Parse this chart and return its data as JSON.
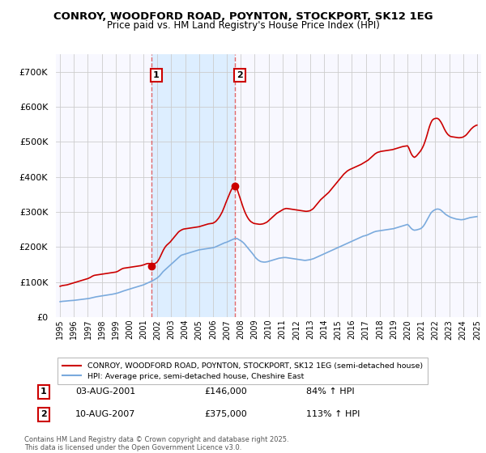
{
  "title": "CONROY, WOODFORD ROAD, POYNTON, STOCKPORT, SK12 1EG",
  "subtitle": "Price paid vs. HM Land Registry's House Price Index (HPI)",
  "legend_line1": "CONROY, WOODFORD ROAD, POYNTON, STOCKPORT, SK12 1EG (semi-detached house)",
  "legend_line2": "HPI: Average price, semi-detached house, Cheshire East",
  "footer": "Contains HM Land Registry data © Crown copyright and database right 2025.\nThis data is licensed under the Open Government Licence v3.0.",
  "sale1_label": "1",
  "sale1_date": "03-AUG-2001",
  "sale1_price": "£146,000",
  "sale1_hpi": "84% ↑ HPI",
  "sale2_label": "2",
  "sale2_date": "10-AUG-2007",
  "sale2_price": "£375,000",
  "sale2_hpi": "113% ↑ HPI",
  "red_color": "#cc0000",
  "blue_color": "#7aaadd",
  "vline_color": "#dd4444",
  "shade_color": "#ddeeff",
  "grid_color": "#cccccc",
  "background_color": "#ffffff",
  "plot_bg_color": "#f8f8ff",
  "ylim": [
    0,
    750000
  ],
  "xlim_start": 1994.7,
  "xlim_end": 2025.3,
  "sale1_x": 2001.58,
  "sale1_y": 146000,
  "sale2_x": 2007.58,
  "sale2_y": 375000,
  "hpi_data_x": [
    1995.0,
    1995.083,
    1995.167,
    1995.25,
    1995.333,
    1995.417,
    1995.5,
    1995.583,
    1995.667,
    1995.75,
    1995.833,
    1995.917,
    1996.0,
    1996.083,
    1996.167,
    1996.25,
    1996.333,
    1996.417,
    1996.5,
    1996.583,
    1996.667,
    1996.75,
    1996.833,
    1996.917,
    1997.0,
    1997.083,
    1997.167,
    1997.25,
    1997.333,
    1997.417,
    1997.5,
    1997.583,
    1997.667,
    1997.75,
    1997.833,
    1997.917,
    1998.0,
    1998.083,
    1998.167,
    1998.25,
    1998.333,
    1998.417,
    1998.5,
    1998.583,
    1998.667,
    1998.75,
    1998.833,
    1998.917,
    1999.0,
    1999.083,
    1999.167,
    1999.25,
    1999.333,
    1999.417,
    1999.5,
    1999.583,
    1999.667,
    1999.75,
    1999.833,
    1999.917,
    2000.0,
    2000.083,
    2000.167,
    2000.25,
    2000.333,
    2000.417,
    2000.5,
    2000.583,
    2000.667,
    2000.75,
    2000.833,
    2000.917,
    2001.0,
    2001.083,
    2001.167,
    2001.25,
    2001.333,
    2001.417,
    2001.5,
    2001.583,
    2001.667,
    2001.75,
    2001.833,
    2001.917,
    2002.0,
    2002.083,
    2002.167,
    2002.25,
    2002.333,
    2002.417,
    2002.5,
    2002.583,
    2002.667,
    2002.75,
    2002.833,
    2002.917,
    2003.0,
    2003.083,
    2003.167,
    2003.25,
    2003.333,
    2003.417,
    2003.5,
    2003.583,
    2003.667,
    2003.75,
    2003.833,
    2003.917,
    2004.0,
    2004.083,
    2004.167,
    2004.25,
    2004.333,
    2004.417,
    2004.5,
    2004.583,
    2004.667,
    2004.75,
    2004.833,
    2004.917,
    2005.0,
    2005.083,
    2005.167,
    2005.25,
    2005.333,
    2005.417,
    2005.5,
    2005.583,
    2005.667,
    2005.75,
    2005.833,
    2005.917,
    2006.0,
    2006.083,
    2006.167,
    2006.25,
    2006.333,
    2006.417,
    2006.5,
    2006.583,
    2006.667,
    2006.75,
    2006.833,
    2006.917,
    2007.0,
    2007.083,
    2007.167,
    2007.25,
    2007.333,
    2007.417,
    2007.5,
    2007.583,
    2007.667,
    2007.75,
    2007.833,
    2007.917,
    2008.0,
    2008.083,
    2008.167,
    2008.25,
    2008.333,
    2008.417,
    2008.5,
    2008.583,
    2008.667,
    2008.75,
    2008.833,
    2008.917,
    2009.0,
    2009.083,
    2009.167,
    2009.25,
    2009.333,
    2009.417,
    2009.5,
    2009.583,
    2009.667,
    2009.75,
    2009.833,
    2009.917,
    2010.0,
    2010.083,
    2010.167,
    2010.25,
    2010.333,
    2010.417,
    2010.5,
    2010.583,
    2010.667,
    2010.75,
    2010.833,
    2010.917,
    2011.0,
    2011.083,
    2011.167,
    2011.25,
    2011.333,
    2011.417,
    2011.5,
    2011.583,
    2011.667,
    2011.75,
    2011.833,
    2011.917,
    2012.0,
    2012.083,
    2012.167,
    2012.25,
    2012.333,
    2012.417,
    2012.5,
    2012.583,
    2012.667,
    2012.75,
    2012.833,
    2012.917,
    2013.0,
    2013.083,
    2013.167,
    2013.25,
    2013.333,
    2013.417,
    2013.5,
    2013.583,
    2013.667,
    2013.75,
    2013.833,
    2013.917,
    2014.0,
    2014.083,
    2014.167,
    2014.25,
    2014.333,
    2014.417,
    2014.5,
    2014.583,
    2014.667,
    2014.75,
    2014.833,
    2014.917,
    2015.0,
    2015.083,
    2015.167,
    2015.25,
    2015.333,
    2015.417,
    2015.5,
    2015.583,
    2015.667,
    2015.75,
    2015.833,
    2015.917,
    2016.0,
    2016.083,
    2016.167,
    2016.25,
    2016.333,
    2016.417,
    2016.5,
    2016.583,
    2016.667,
    2016.75,
    2016.833,
    2016.917,
    2017.0,
    2017.083,
    2017.167,
    2017.25,
    2017.333,
    2017.417,
    2017.5,
    2017.583,
    2017.667,
    2017.75,
    2017.833,
    2017.917,
    2018.0,
    2018.083,
    2018.167,
    2018.25,
    2018.333,
    2018.417,
    2018.5,
    2018.583,
    2018.667,
    2018.75,
    2018.833,
    2018.917,
    2019.0,
    2019.083,
    2019.167,
    2019.25,
    2019.333,
    2019.417,
    2019.5,
    2019.583,
    2019.667,
    2019.75,
    2019.833,
    2019.917,
    2020.0,
    2020.083,
    2020.167,
    2020.25,
    2020.333,
    2020.417,
    2020.5,
    2020.583,
    2020.667,
    2020.75,
    2020.833,
    2020.917,
    2021.0,
    2021.083,
    2021.167,
    2021.25,
    2021.333,
    2021.417,
    2021.5,
    2021.583,
    2021.667,
    2021.75,
    2021.833,
    2021.917,
    2022.0,
    2022.083,
    2022.167,
    2022.25,
    2022.333,
    2022.417,
    2022.5,
    2022.583,
    2022.667,
    2022.75,
    2022.833,
    2022.917,
    2023.0,
    2023.083,
    2023.167,
    2023.25,
    2023.333,
    2023.417,
    2023.5,
    2023.583,
    2023.667,
    2023.75,
    2023.833,
    2023.917,
    2024.0,
    2024.083,
    2024.167,
    2024.25,
    2024.333,
    2024.417,
    2024.5,
    2024.583,
    2024.667,
    2024.75,
    2024.833,
    2024.917,
    2025.0
  ],
  "hpi_data_y": [
    44000,
    44500,
    45000,
    45200,
    45500,
    45800,
    46200,
    46500,
    46800,
    47000,
    47200,
    47500,
    47800,
    48200,
    48600,
    49000,
    49400,
    49800,
    50200,
    50600,
    51000,
    51400,
    51800,
    52200,
    52600,
    53200,
    54000,
    54800,
    55600,
    56400,
    57200,
    57800,
    58400,
    59000,
    59500,
    60000,
    60500,
    61000,
    61500,
    62000,
    62500,
    63000,
    63500,
    64000,
    64600,
    65200,
    65800,
    66500,
    67200,
    68000,
    69000,
    70000,
    71200,
    72500,
    73800,
    74800,
    75800,
    76800,
    77800,
    78800,
    79800,
    81000,
    82000,
    83000,
    84000,
    85000,
    86000,
    87000,
    88000,
    89000,
    90000,
    91000,
    92000,
    93500,
    95000,
    96500,
    98000,
    99500,
    101000,
    102500,
    104000,
    106000,
    108000,
    110000,
    112000,
    115000,
    118000,
    122000,
    126000,
    130000,
    133000,
    136000,
    139000,
    142000,
    145000,
    148000,
    151000,
    154000,
    157000,
    160000,
    163000,
    166000,
    169000,
    172000,
    175000,
    177000,
    178000,
    179000,
    180000,
    181000,
    182000,
    183000,
    184000,
    185000,
    186000,
    187000,
    188000,
    189000,
    190000,
    191000,
    192000,
    192500,
    193000,
    193500,
    194000,
    194500,
    195000,
    195500,
    196000,
    196500,
    197000,
    197500,
    198000,
    199000,
    200000,
    201500,
    203000,
    204500,
    206000,
    207500,
    209000,
    210500,
    212000,
    213000,
    214000,
    215500,
    217000,
    218500,
    220000,
    221500,
    223000,
    224000,
    224500,
    224000,
    222000,
    220000,
    218000,
    216000,
    213000,
    210000,
    206000,
    202000,
    198000,
    194000,
    190000,
    186000,
    182000,
    178000,
    173000,
    169000,
    166000,
    163000,
    161000,
    159000,
    158000,
    157500,
    157000,
    157000,
    157500,
    158000,
    159000,
    160000,
    161000,
    162000,
    163000,
    164000,
    165000,
    166000,
    167000,
    168000,
    168500,
    169000,
    169500,
    170000,
    170000,
    170000,
    169500,
    169000,
    168500,
    168000,
    167500,
    167000,
    166500,
    166000,
    165500,
    165000,
    164500,
    164000,
    163500,
    163000,
    162500,
    162000,
    162000,
    162500,
    163000,
    163500,
    164000,
    165000,
    166000,
    167000,
    168500,
    170000,
    171500,
    173000,
    174500,
    176000,
    177500,
    179000,
    180500,
    182000,
    183500,
    185000,
    186500,
    188000,
    189500,
    191000,
    192500,
    194000,
    195500,
    197000,
    198500,
    200000,
    201500,
    203000,
    204500,
    206000,
    207500,
    209000,
    210500,
    212000,
    213500,
    215000,
    216500,
    218000,
    219500,
    221000,
    222500,
    224000,
    225500,
    227000,
    228500,
    230000,
    231500,
    232000,
    233000,
    234000,
    235500,
    237000,
    238500,
    240000,
    241500,
    243000,
    244000,
    245000,
    245500,
    246000,
    246500,
    247000,
    247500,
    248000,
    248500,
    249000,
    249500,
    250000,
    250500,
    251000,
    251500,
    252000,
    252500,
    253500,
    254500,
    255500,
    256500,
    257500,
    258500,
    259500,
    260500,
    261500,
    262500,
    263500,
    264500,
    262000,
    258000,
    254000,
    251000,
    249000,
    248000,
    248500,
    249000,
    250000,
    251000,
    252000,
    254000,
    257000,
    261000,
    266000,
    272000,
    278000,
    284000,
    290000,
    296000,
    300000,
    303000,
    305000,
    307000,
    308000,
    308500,
    308000,
    307000,
    305000,
    302000,
    299000,
    296000,
    293000,
    291000,
    289000,
    287000,
    285500,
    284000,
    283000,
    282000,
    281000,
    280000,
    279500,
    279000,
    278500,
    278000,
    278000,
    278500,
    279000,
    280000,
    281000,
    282000,
    283000,
    284000,
    284500,
    285000,
    285500,
    286000,
    286500,
    287000
  ],
  "red_data_x": [
    1995.0,
    1995.083,
    1995.167,
    1995.25,
    1995.333,
    1995.417,
    1995.5,
    1995.583,
    1995.667,
    1995.75,
    1995.833,
    1995.917,
    1996.0,
    1996.083,
    1996.167,
    1996.25,
    1996.333,
    1996.417,
    1996.5,
    1996.583,
    1996.667,
    1996.75,
    1996.833,
    1996.917,
    1997.0,
    1997.083,
    1997.167,
    1997.25,
    1997.333,
    1997.417,
    1997.5,
    1997.583,
    1997.667,
    1997.75,
    1997.833,
    1997.917,
    1998.0,
    1998.083,
    1998.167,
    1998.25,
    1998.333,
    1998.417,
    1998.5,
    1998.583,
    1998.667,
    1998.75,
    1998.833,
    1998.917,
    1999.0,
    1999.083,
    1999.167,
    1999.25,
    1999.333,
    1999.417,
    1999.5,
    1999.583,
    1999.667,
    1999.75,
    1999.833,
    1999.917,
    2000.0,
    2000.083,
    2000.167,
    2000.25,
    2000.333,
    2000.417,
    2000.5,
    2000.583,
    2000.667,
    2000.75,
    2000.833,
    2000.917,
    2001.0,
    2001.083,
    2001.167,
    2001.25,
    2001.333,
    2001.417,
    2001.5,
    2001.583,
    2001.667,
    2001.75,
    2001.833,
    2001.917,
    2002.0,
    2002.083,
    2002.167,
    2002.25,
    2002.333,
    2002.417,
    2002.5,
    2002.583,
    2002.667,
    2002.75,
    2002.833,
    2002.917,
    2003.0,
    2003.083,
    2003.167,
    2003.25,
    2003.333,
    2003.417,
    2003.5,
    2003.583,
    2003.667,
    2003.75,
    2003.833,
    2003.917,
    2004.0,
    2004.083,
    2004.167,
    2004.25,
    2004.333,
    2004.417,
    2004.5,
    2004.583,
    2004.667,
    2004.75,
    2004.833,
    2004.917,
    2005.0,
    2005.083,
    2005.167,
    2005.25,
    2005.333,
    2005.417,
    2005.5,
    2005.583,
    2005.667,
    2005.75,
    2005.833,
    2005.917,
    2006.0,
    2006.083,
    2006.167,
    2006.25,
    2006.333,
    2006.417,
    2006.5,
    2006.583,
    2006.667,
    2006.75,
    2006.833,
    2006.917,
    2007.0,
    2007.083,
    2007.167,
    2007.25,
    2007.333,
    2007.417,
    2007.5,
    2007.583,
    2007.667,
    2007.75,
    2007.833,
    2007.917,
    2008.0,
    2008.083,
    2008.167,
    2008.25,
    2008.333,
    2008.417,
    2008.5,
    2008.583,
    2008.667,
    2008.75,
    2008.833,
    2008.917,
    2009.0,
    2009.083,
    2009.167,
    2009.25,
    2009.333,
    2009.417,
    2009.5,
    2009.583,
    2009.667,
    2009.75,
    2009.833,
    2009.917,
    2010.0,
    2010.083,
    2010.167,
    2010.25,
    2010.333,
    2010.417,
    2010.5,
    2010.583,
    2010.667,
    2010.75,
    2010.833,
    2010.917,
    2011.0,
    2011.083,
    2011.167,
    2011.25,
    2011.333,
    2011.417,
    2011.5,
    2011.583,
    2011.667,
    2011.75,
    2011.833,
    2011.917,
    2012.0,
    2012.083,
    2012.167,
    2012.25,
    2012.333,
    2012.417,
    2012.5,
    2012.583,
    2012.667,
    2012.75,
    2012.833,
    2012.917,
    2013.0,
    2013.083,
    2013.167,
    2013.25,
    2013.333,
    2013.417,
    2013.5,
    2013.583,
    2013.667,
    2013.75,
    2013.833,
    2013.917,
    2014.0,
    2014.083,
    2014.167,
    2014.25,
    2014.333,
    2014.417,
    2014.5,
    2014.583,
    2014.667,
    2014.75,
    2014.833,
    2014.917,
    2015.0,
    2015.083,
    2015.167,
    2015.25,
    2015.333,
    2015.417,
    2015.5,
    2015.583,
    2015.667,
    2015.75,
    2015.833,
    2015.917,
    2016.0,
    2016.083,
    2016.167,
    2016.25,
    2016.333,
    2016.417,
    2016.5,
    2016.583,
    2016.667,
    2016.75,
    2016.833,
    2016.917,
    2017.0,
    2017.083,
    2017.167,
    2017.25,
    2017.333,
    2017.417,
    2017.5,
    2017.583,
    2017.667,
    2017.75,
    2017.833,
    2017.917,
    2018.0,
    2018.083,
    2018.167,
    2018.25,
    2018.333,
    2018.417,
    2018.5,
    2018.583,
    2018.667,
    2018.75,
    2018.833,
    2018.917,
    2019.0,
    2019.083,
    2019.167,
    2019.25,
    2019.333,
    2019.417,
    2019.5,
    2019.583,
    2019.667,
    2019.75,
    2019.833,
    2019.917,
    2020.0,
    2020.083,
    2020.167,
    2020.25,
    2020.333,
    2020.417,
    2020.5,
    2020.583,
    2020.667,
    2020.75,
    2020.833,
    2020.917,
    2021.0,
    2021.083,
    2021.167,
    2021.25,
    2021.333,
    2021.417,
    2021.5,
    2021.583,
    2021.667,
    2021.75,
    2021.833,
    2021.917,
    2022.0,
    2022.083,
    2022.167,
    2022.25,
    2022.333,
    2022.417,
    2022.5,
    2022.583,
    2022.667,
    2022.75,
    2022.833,
    2022.917,
    2023.0,
    2023.083,
    2023.167,
    2023.25,
    2023.333,
    2023.417,
    2023.5,
    2023.583,
    2023.667,
    2023.75,
    2023.833,
    2023.917,
    2024.0,
    2024.083,
    2024.167,
    2024.25,
    2024.333,
    2024.417,
    2024.5,
    2024.583,
    2024.667,
    2024.75,
    2024.833,
    2024.917,
    2025.0
  ],
  "red_data_y": [
    88000,
    89000,
    90000,
    90500,
    91000,
    91500,
    92000,
    93000,
    94000,
    95000,
    96000,
    97000,
    98000,
    99000,
    100000,
    101000,
    102000,
    103000,
    104000,
    105000,
    106000,
    107000,
    108000,
    109000,
    110000,
    111500,
    113000,
    115000,
    117000,
    118500,
    119500,
    120000,
    120500,
    121000,
    121500,
    122000,
    122500,
    123000,
    123500,
    124000,
    124500,
    125000,
    125500,
    126000,
    126500,
    127000,
    127500,
    128000,
    128500,
    129500,
    131000,
    133000,
    135000,
    137000,
    138500,
    139500,
    140000,
    140500,
    141000,
    141500,
    142000,
    142500,
    143000,
    143500,
    144000,
    144500,
    145000,
    145500,
    146000,
    146500,
    147000,
    148000,
    149000,
    150000,
    151500,
    152500,
    153000,
    153000,
    152500,
    152000,
    151500,
    152000,
    153000,
    155000,
    158000,
    163000,
    169000,
    176000,
    183000,
    190000,
    196000,
    201000,
    205000,
    208000,
    211000,
    214000,
    218000,
    222000,
    226000,
    230000,
    234000,
    238000,
    242000,
    245000,
    247000,
    249000,
    250500,
    251500,
    252000,
    252500,
    253000,
    253500,
    254000,
    254500,
    255000,
    255500,
    256000,
    256500,
    257000,
    257500,
    258000,
    259000,
    260000,
    261000,
    262000,
    263000,
    264000,
    265000,
    266000,
    266500,
    267000,
    267500,
    268000,
    270000,
    272000,
    275000,
    279000,
    283000,
    288000,
    294000,
    300000,
    308000,
    316000,
    325000,
    333000,
    341000,
    349000,
    357000,
    364000,
    370000,
    374000,
    375000,
    372000,
    364000,
    354000,
    344000,
    334000,
    324000,
    314000,
    305000,
    297000,
    290000,
    284000,
    279000,
    275000,
    272000,
    270000,
    268000,
    267000,
    266500,
    266000,
    265500,
    265000,
    265000,
    265500,
    266000,
    267000,
    268500,
    270000,
    272000,
    275000,
    278000,
    281000,
    284000,
    287000,
    290000,
    293000,
    296000,
    298000,
    300000,
    302000,
    304000,
    306000,
    308000,
    309000,
    310000,
    310000,
    309500,
    309000,
    308500,
    308000,
    307500,
    307000,
    306500,
    306000,
    305500,
    305000,
    304500,
    304000,
    303500,
    303000,
    302500,
    302000,
    302000,
    302500,
    303000,
    304000,
    306000,
    308000,
    311000,
    315000,
    319000,
    323000,
    327000,
    331000,
    335000,
    338000,
    341000,
    344000,
    347000,
    350000,
    353000,
    356000,
    360000,
    364000,
    368000,
    372000,
    376000,
    380000,
    384000,
    388000,
    392000,
    396000,
    400000,
    404000,
    408000,
    411000,
    414000,
    417000,
    419000,
    421000,
    422500,
    424000,
    425500,
    427000,
    428500,
    430000,
    431500,
    433000,
    434500,
    436000,
    438000,
    440000,
    442000,
    444000,
    446000,
    448000,
    451000,
    454000,
    457000,
    460000,
    463000,
    466000,
    468000,
    470000,
    471000,
    472000,
    473000,
    473500,
    474000,
    474500,
    475000,
    475500,
    476000,
    476500,
    477000,
    477500,
    478000,
    479000,
    480000,
    481000,
    482000,
    483000,
    484000,
    485000,
    486000,
    487000,
    487500,
    488000,
    488500,
    489000,
    484000,
    476000,
    468000,
    462000,
    458000,
    456000,
    458000,
    461000,
    465000,
    469000,
    473000,
    478000,
    484000,
    491000,
    500000,
    510000,
    521000,
    533000,
    544000,
    553000,
    560000,
    564000,
    566000,
    567000,
    567500,
    567000,
    565000,
    561000,
    556000,
    550000,
    543000,
    536000,
    530000,
    525000,
    521000,
    518000,
    516000,
    515000,
    514500,
    514000,
    513500,
    513000,
    512500,
    512000,
    512000,
    512500,
    513000,
    514000,
    516000,
    518000,
    521000,
    525000,
    529000,
    533000,
    537000,
    540000,
    543000,
    545000,
    547000,
    548000
  ]
}
